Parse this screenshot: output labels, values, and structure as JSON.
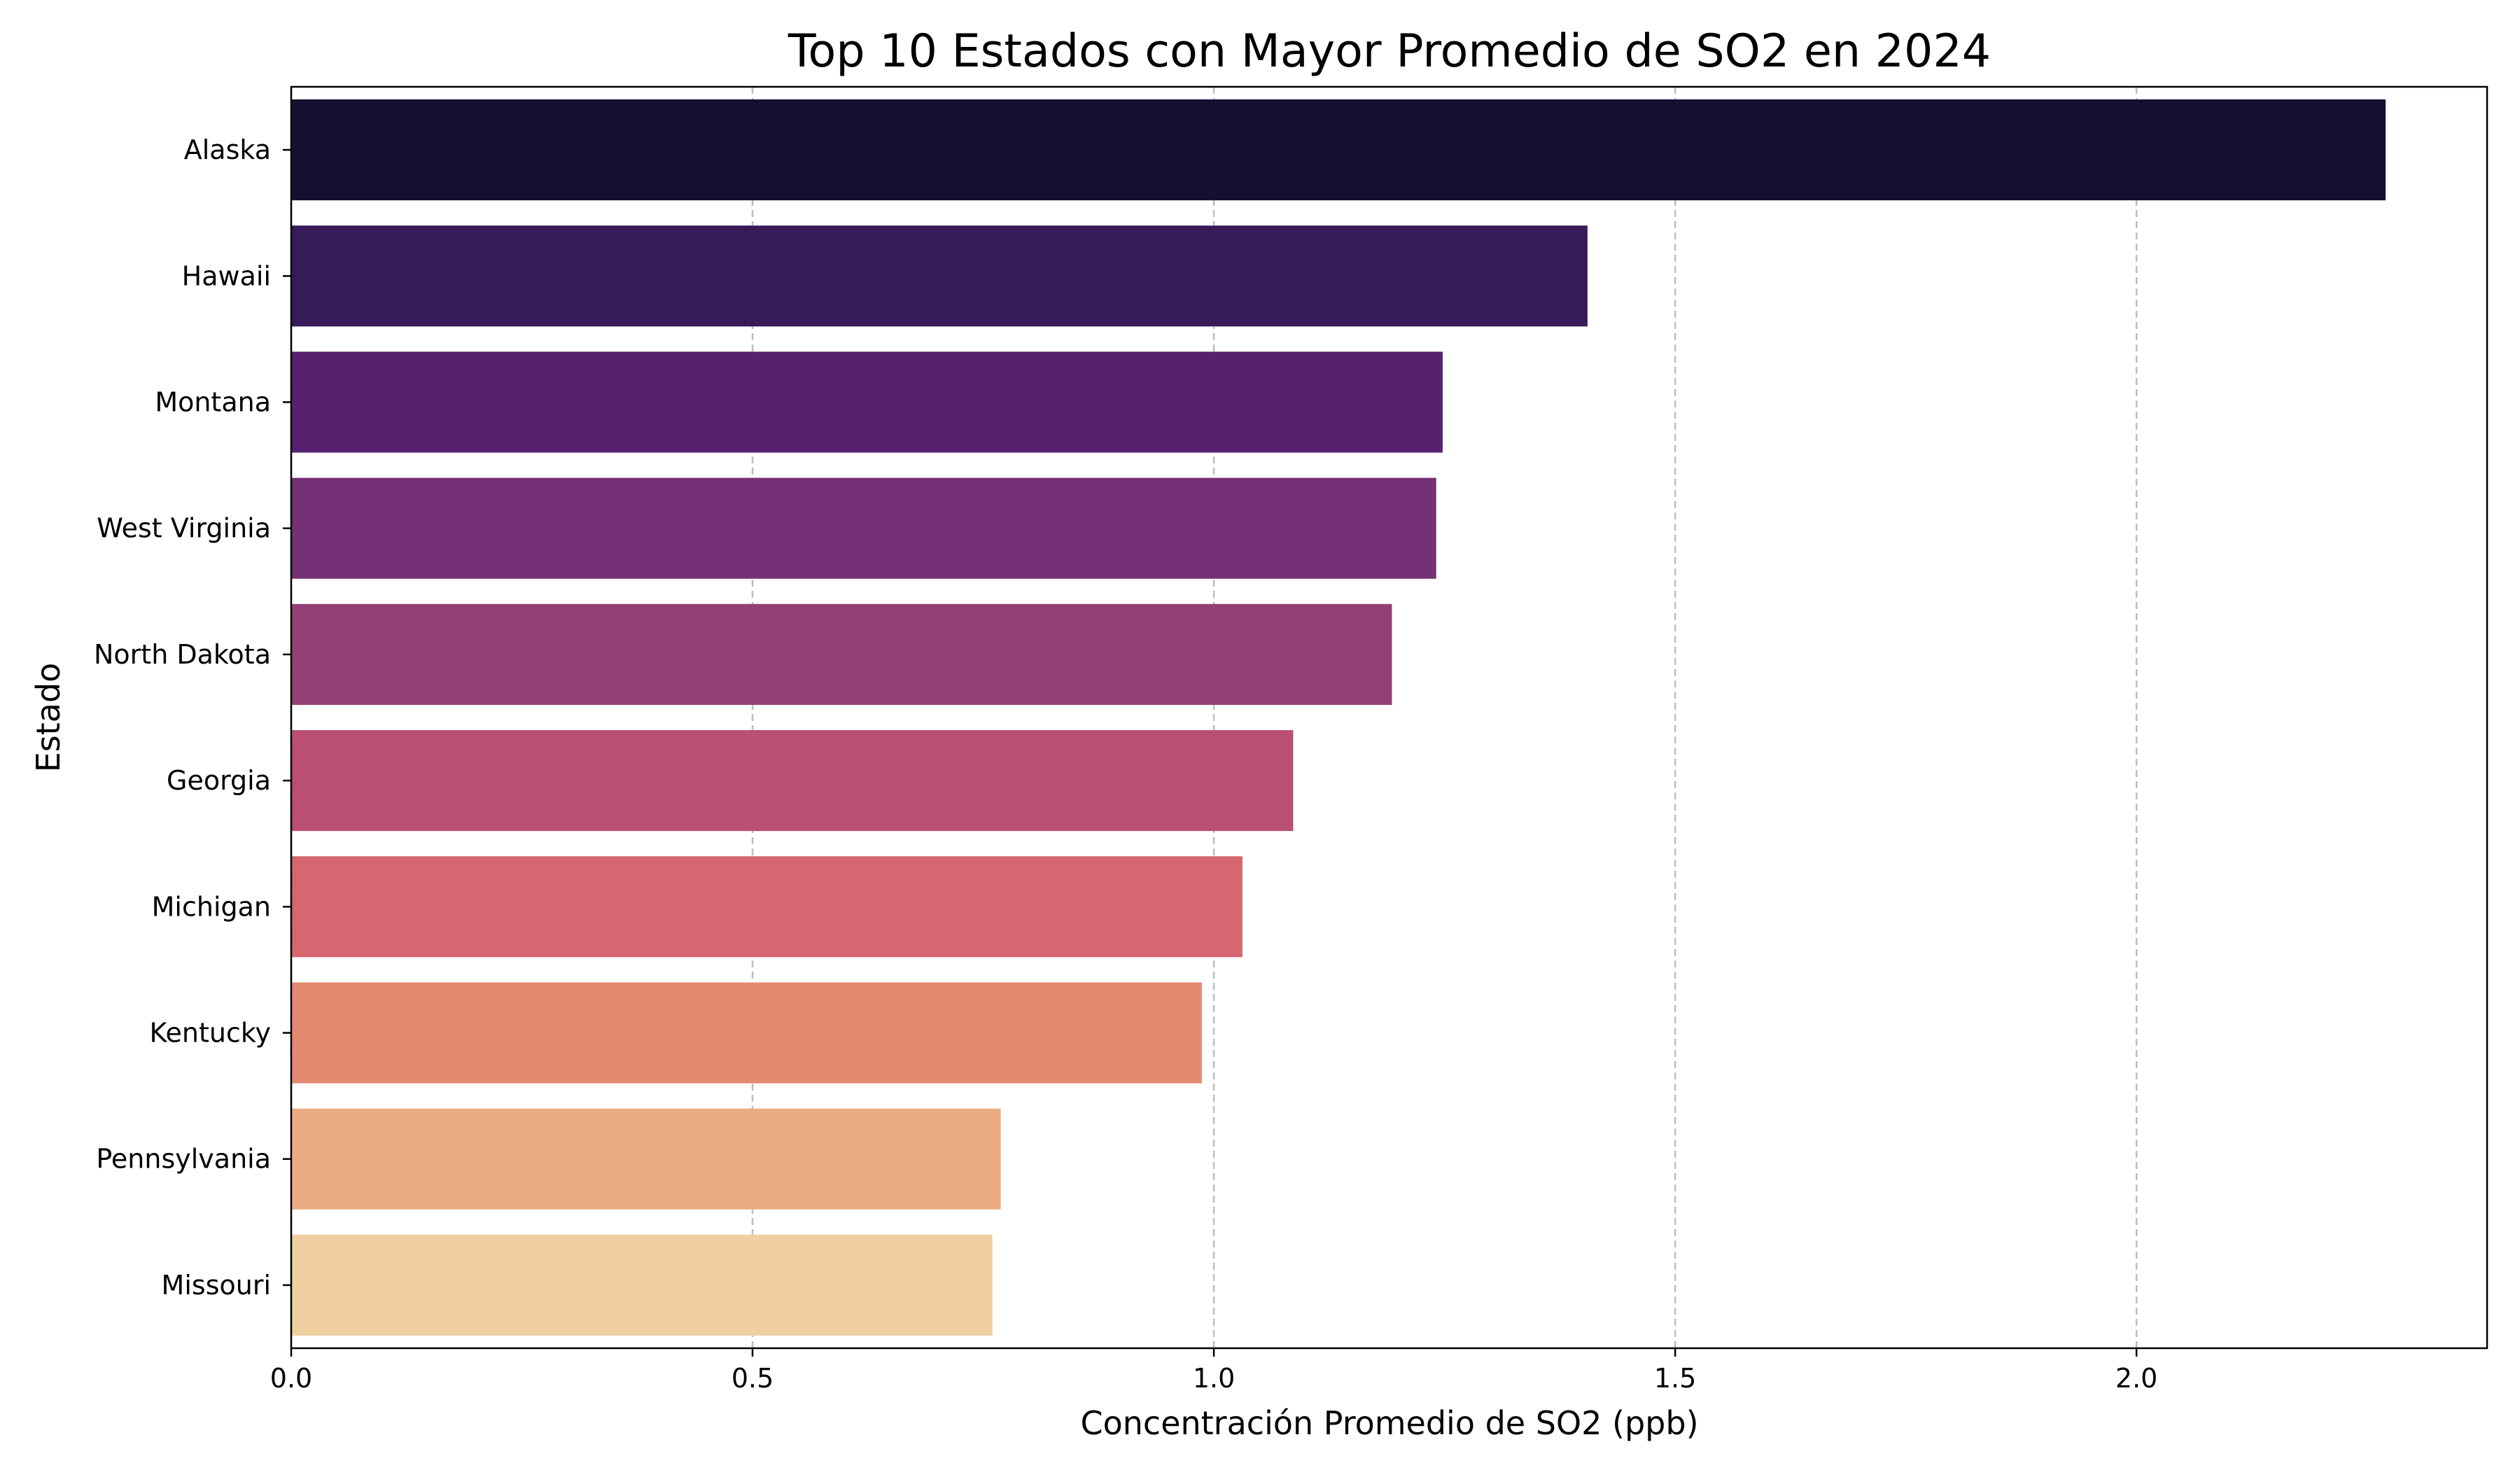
{
  "chart_data": {
    "type": "bar",
    "orientation": "horizontal",
    "title": "Top 10 Estados con Mayor Promedio de SO2 en 2024",
    "xlabel": "Concentración Promedio de SO2 (ppb)",
    "ylabel": "Estado",
    "categories": [
      "Alaska",
      "Hawaii",
      "Montana",
      "West Virginia",
      "North Dakota",
      "Georgia",
      "Michigan",
      "Kentucky",
      "Pennsylvania",
      "Missouri"
    ],
    "values": [
      2.27,
      1.405,
      1.248,
      1.241,
      1.193,
      1.086,
      1.031,
      0.987,
      0.769,
      0.76
    ],
    "colors": [
      "#160f31",
      "#361b58",
      "#57216f",
      "#753175",
      "#943f76",
      "#ba4f73",
      "#d66670",
      "#e48a71",
      "#ebac84",
      "#f0d0a0"
    ],
    "xlim": [
      0,
      2.38
    ],
    "xticks": [
      0.0,
      0.5,
      1.0,
      1.5,
      2.0
    ],
    "xtick_labels": [
      "0.0",
      "0.5",
      "1.0",
      "1.5",
      "2.0"
    ],
    "grid": {
      "x": true,
      "y": false,
      "style": "dashed",
      "color": "#bdbdbd"
    }
  }
}
